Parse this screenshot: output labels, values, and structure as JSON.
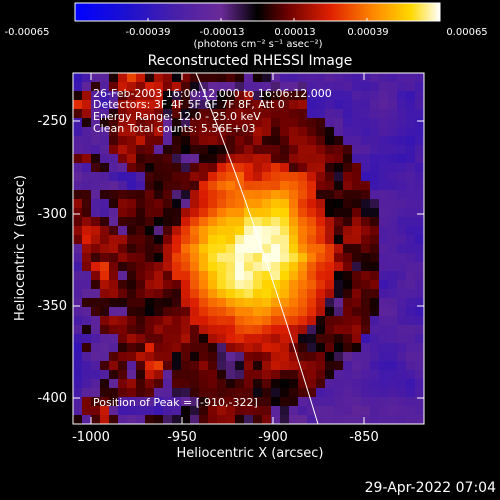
{
  "colorbar": {
    "tick_labels": [
      "-0.00065",
      "-0.00039",
      "-0.00013",
      "0.00013",
      "0.00039",
      "0.00065"
    ],
    "units_label": "(photons cm⁻² s⁻¹ asec⁻²)"
  },
  "plot": {
    "title": "Reconstructed RHESSI Image",
    "xlabel": "Heliocentric X (arcsec)",
    "ylabel": "Heliocentric Y (arcsec)",
    "x_ticks": [
      "-1000",
      "-950",
      "-900",
      "-850"
    ],
    "y_ticks": [
      "-250",
      "-300",
      "-350",
      "-400"
    ]
  },
  "annotations": {
    "time_range": "26-Feb-2003 16:00:12.000 to 16:06:12.000",
    "detectors": "Detectors: 3F 4F 5F 6F 7F 8F, Att 0",
    "energy": "Energy Range: 12.0 - 25.0 keV",
    "clean": "Clean    Total counts: 5.56E+03",
    "peak": "Position of Peak = [-910,-322]"
  },
  "footer": {
    "timestamp": "29-Apr-2022 07:04"
  },
  "chart_data": {
    "type": "heatmap",
    "title": "Reconstructed RHESSI Image",
    "xlabel": "Heliocentric X (arcsec)",
    "ylabel": "Heliocentric Y (arcsec)",
    "xlim": [
      -1010,
      -817
    ],
    "ylim": [
      -412,
      -224
    ],
    "color_range": [
      -0.00065,
      0.00065
    ],
    "peak": [
      -910,
      -322
    ],
    "colors": {
      "background": "#000000",
      "limb_line": "#ffffff"
    }
  }
}
